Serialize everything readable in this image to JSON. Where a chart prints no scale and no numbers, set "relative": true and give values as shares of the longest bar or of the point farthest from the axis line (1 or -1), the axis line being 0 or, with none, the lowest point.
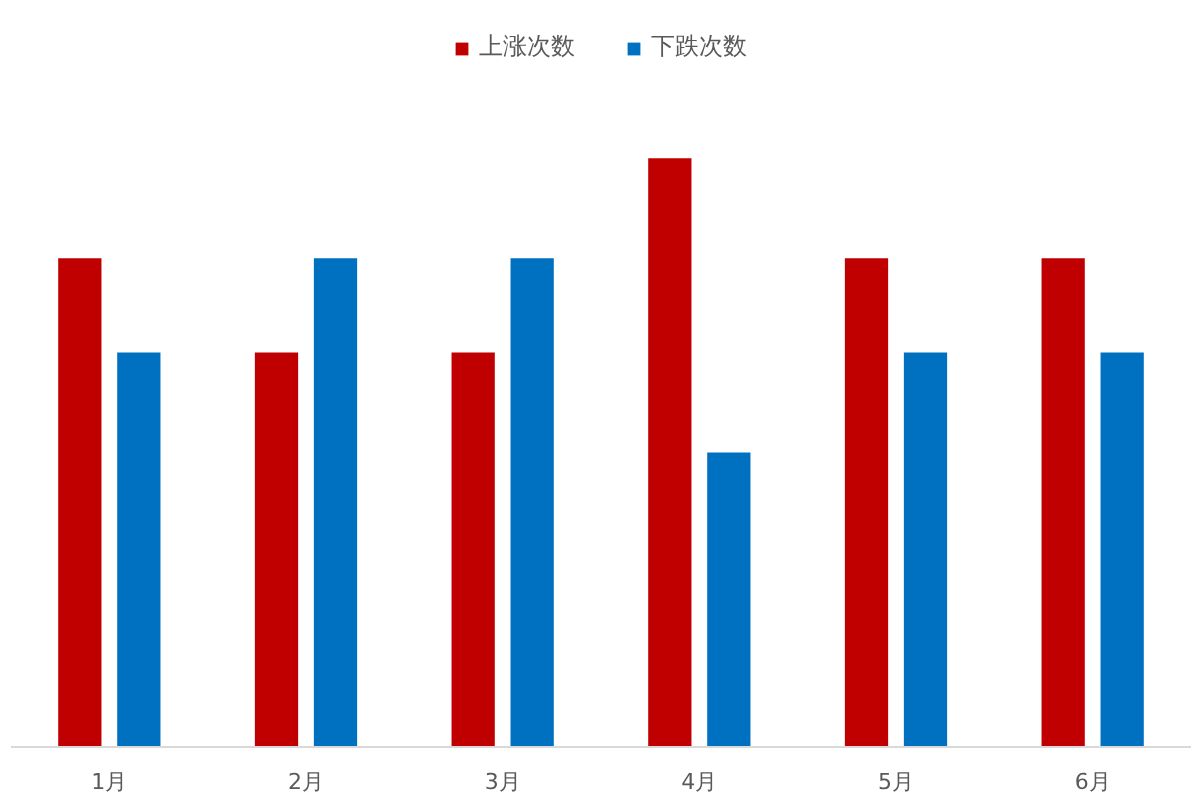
{
  "chart_data": {
    "type": "bar",
    "relative": true,
    "categories": [
      "1月",
      "2月",
      "3月",
      "4月",
      "5月",
      "6月"
    ],
    "series": [
      {
        "name": "上涨次数",
        "color": "#c00000",
        "values": [
          0.83,
          0.67,
          0.67,
          1,
          0.83,
          0.83
        ]
      },
      {
        "name": "下跌次数",
        "color": "#0070c0",
        "values": [
          0.67,
          0.83,
          0.83,
          0.5,
          0.67,
          0.67
        ]
      }
    ],
    "legend": "top"
  }
}
